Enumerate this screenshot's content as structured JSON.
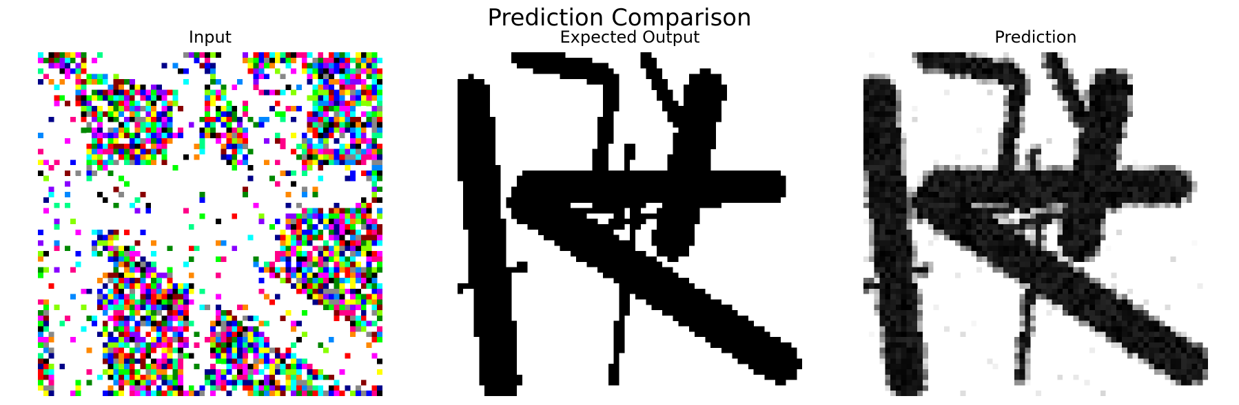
{
  "figure": {
    "suptitle": "Prediction Comparison"
  },
  "panels": [
    {
      "id": "input",
      "title": "Input"
    },
    {
      "id": "expected",
      "title": "Expected Output"
    },
    {
      "id": "prediction",
      "title": "Prediction"
    }
  ],
  "colors": {
    "background": "#ffffff",
    "stroke": "#000000",
    "noise_palette": [
      "#ff0000",
      "#00ff00",
      "#0000ff",
      "#ffff00",
      "#ff00ff",
      "#00ffff",
      "#ff8800",
      "#8800ff",
      "#00ff88",
      "#ff0088",
      "#88ff00",
      "#0088ff",
      "#000000",
      "#888888",
      "#008800",
      "#880000",
      "#000088",
      "#ffffff"
    ]
  }
}
